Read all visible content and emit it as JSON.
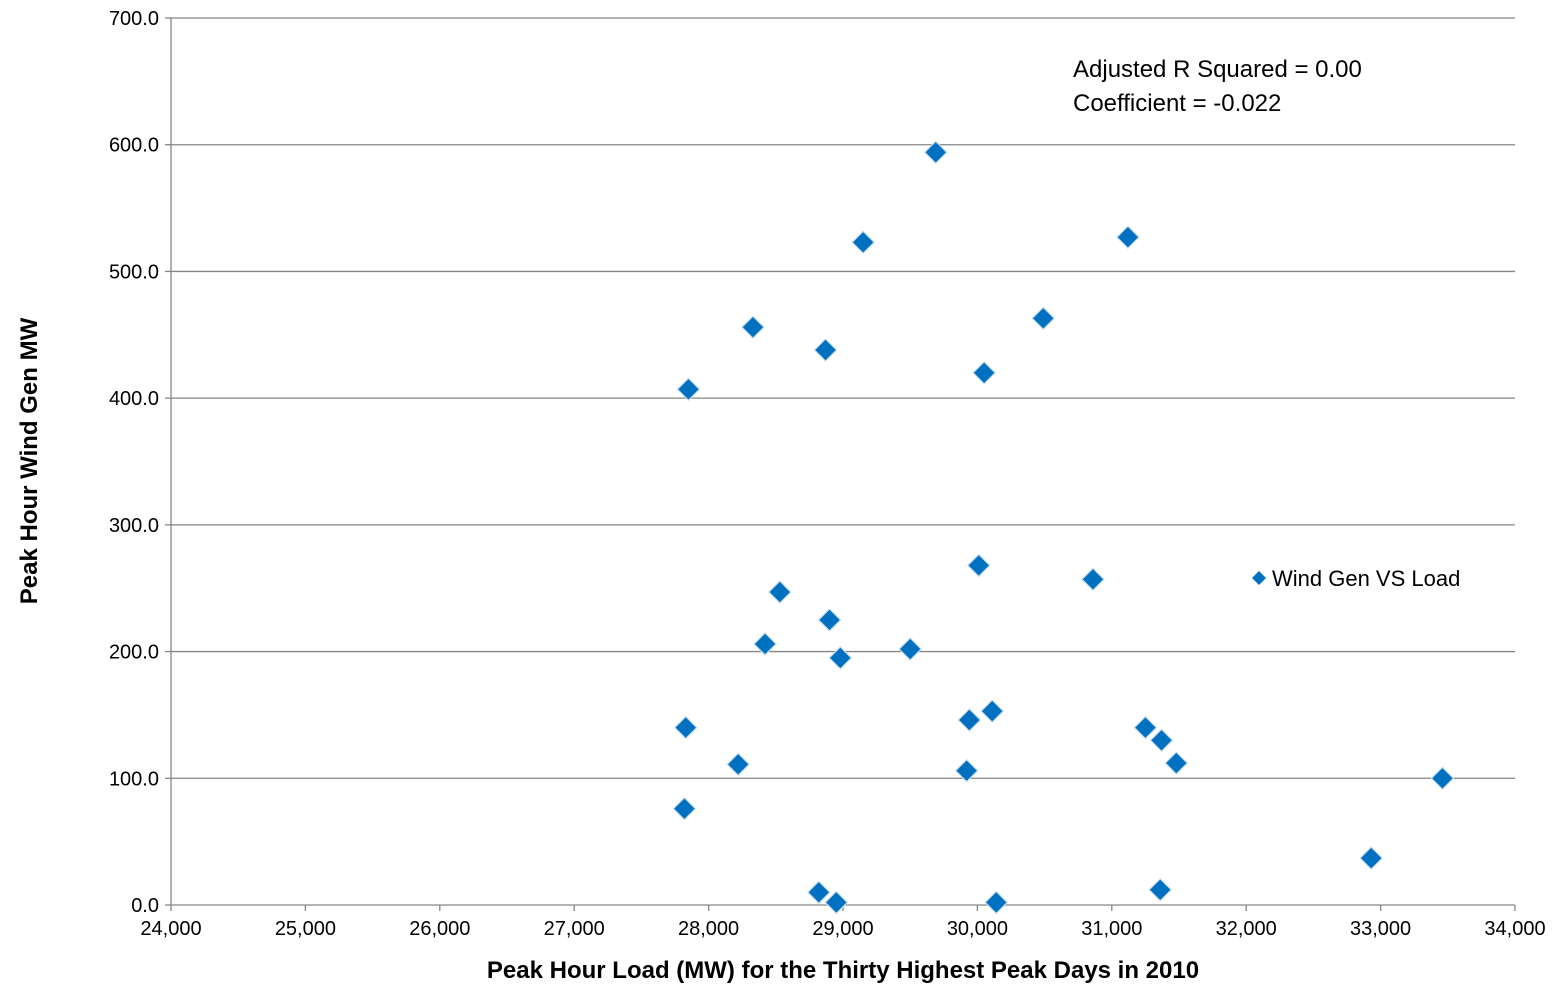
{
  "chart_data": {
    "type": "scatter",
    "xlabel": "Peak Hour Load (MW) for the Thirty Highest Peak Days in 2010",
    "ylabel": "Peak Hour Wind Gen MW",
    "xlim": [
      24000,
      34000
    ],
    "ylim": [
      0,
      700
    ],
    "x_ticks": [
      "24,000",
      "25,000",
      "26,000",
      "27,000",
      "28,000",
      "29,000",
      "30,000",
      "31,000",
      "32,000",
      "33,000",
      "34,000"
    ],
    "y_ticks": [
      "0.0",
      "100.0",
      "200.0",
      "300.0",
      "400.0",
      "500.0",
      "600.0",
      "700.0"
    ],
    "grid": "horizontal",
    "legend_position": "right",
    "annotations": [
      "Adjusted R  Squared = 0.00",
      "Coefficient = -0.022"
    ],
    "series": [
      {
        "name": "Wind Gen VS Load",
        "color": "#0070C0",
        "marker": "diamond",
        "points": [
          {
            "x": 27850,
            "y": 407
          },
          {
            "x": 27830,
            "y": 140
          },
          {
            "x": 27820,
            "y": 76
          },
          {
            "x": 28220,
            "y": 111
          },
          {
            "x": 28330,
            "y": 456
          },
          {
            "x": 28420,
            "y": 206
          },
          {
            "x": 28530,
            "y": 247
          },
          {
            "x": 28820,
            "y": 10
          },
          {
            "x": 28870,
            "y": 438
          },
          {
            "x": 28900,
            "y": 225
          },
          {
            "x": 28950,
            "y": 2
          },
          {
            "x": 28980,
            "y": 195
          },
          {
            "x": 29150,
            "y": 523
          },
          {
            "x": 29500,
            "y": 202
          },
          {
            "x": 29690,
            "y": 594
          },
          {
            "x": 29920,
            "y": 106
          },
          {
            "x": 29940,
            "y": 146
          },
          {
            "x": 30010,
            "y": 268
          },
          {
            "x": 30050,
            "y": 420
          },
          {
            "x": 30110,
            "y": 153
          },
          {
            "x": 30140,
            "y": 2
          },
          {
            "x": 30490,
            "y": 463
          },
          {
            "x": 30860,
            "y": 257
          },
          {
            "x": 31120,
            "y": 527
          },
          {
            "x": 31250,
            "y": 140
          },
          {
            "x": 31370,
            "y": 130
          },
          {
            "x": 31360,
            "y": 12
          },
          {
            "x": 31480,
            "y": 112
          },
          {
            "x": 32930,
            "y": 37
          },
          {
            "x": 33460,
            "y": 100
          }
        ]
      }
    ]
  }
}
